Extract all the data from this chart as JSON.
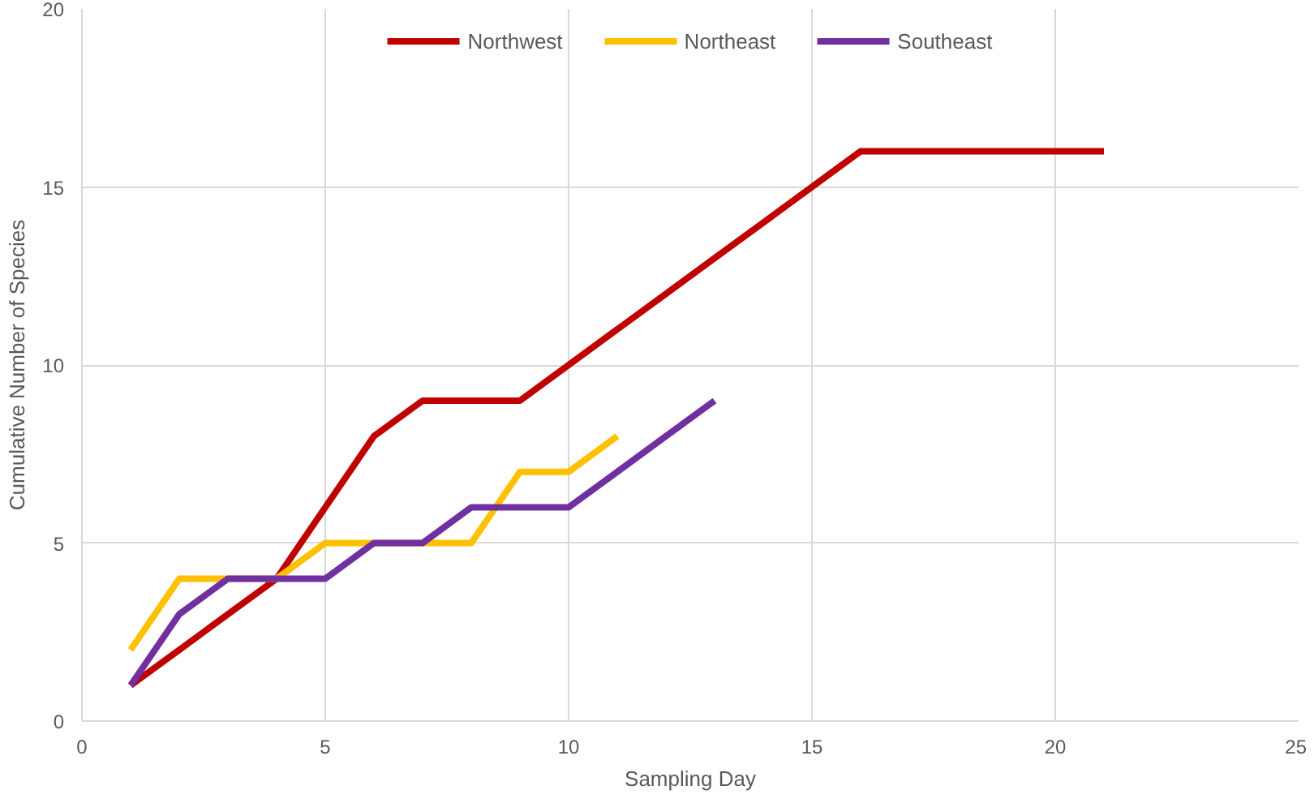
{
  "chart_data": {
    "type": "line",
    "xlabel": "Sampling Day",
    "ylabel": "Cumulative Number of Species",
    "xlim": [
      0,
      25
    ],
    "xticks": [
      0,
      5,
      10,
      15,
      20,
      25
    ],
    "ylim": [
      0,
      20
    ],
    "yticks": [
      0,
      5,
      10,
      15,
      20
    ],
    "grid": true,
    "legend": "top",
    "marker": "none",
    "line_style": "solid",
    "series": [
      {
        "name": "Northwest",
        "color": "#c00000",
        "x": [
          1,
          2,
          3,
          4,
          5,
          6,
          7,
          8,
          9,
          10,
          11,
          12,
          13,
          14,
          15,
          16,
          17,
          18,
          19,
          20,
          21
        ],
        "values": [
          1,
          2,
          3,
          4,
          6,
          8,
          9,
          9,
          9,
          10,
          11,
          12,
          13,
          14,
          15,
          16,
          16,
          16,
          16,
          16,
          16
        ]
      },
      {
        "name": "Northeast",
        "color": "#ffc000",
        "x": [
          1,
          2,
          3,
          4,
          5,
          6,
          7,
          8,
          9,
          10,
          11
        ],
        "values": [
          2,
          4,
          4,
          4,
          5,
          5,
          5,
          5,
          7,
          7,
          8
        ]
      },
      {
        "name": "Southeast",
        "color": "#7030a0",
        "x": [
          1,
          2,
          3,
          4,
          5,
          6,
          7,
          8,
          9,
          10,
          11,
          12,
          13
        ],
        "values": [
          1,
          3,
          4,
          4,
          4,
          5,
          5,
          6,
          6,
          6,
          7,
          8,
          9
        ]
      }
    ]
  }
}
